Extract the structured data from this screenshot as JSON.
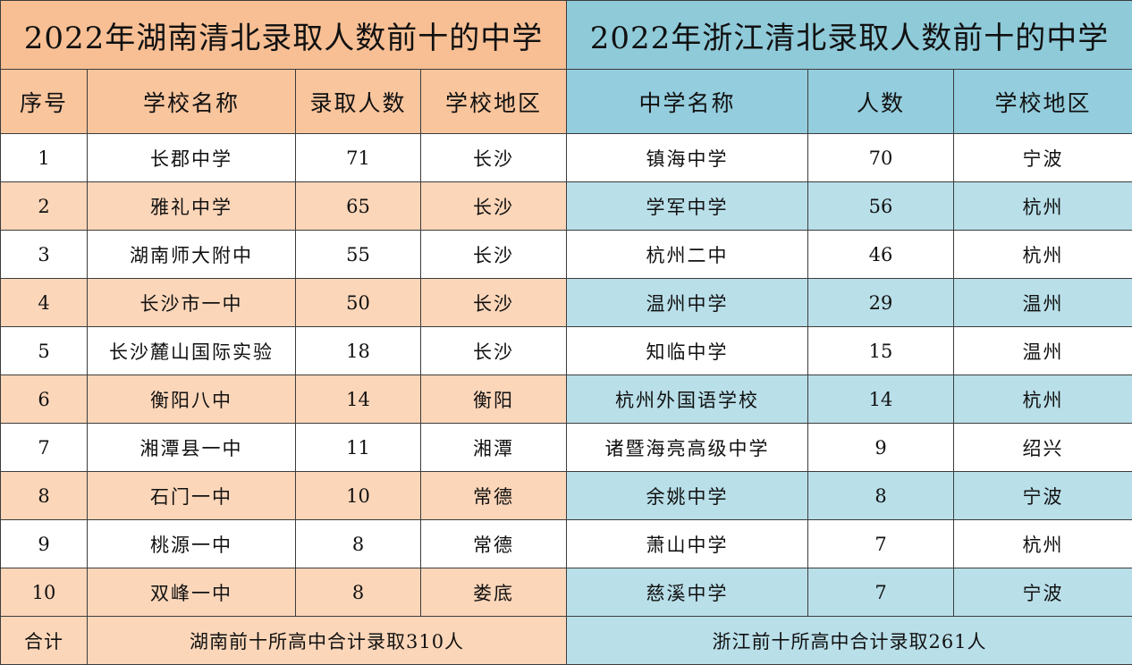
{
  "hunan": {
    "title": "2022年湖南清北录取人数前十的中学",
    "headers": [
      "序号",
      "学校名称",
      "录取人数",
      "学校地区"
    ],
    "rows": [
      [
        "1",
        "长郡中学",
        "71",
        "长沙"
      ],
      [
        "2",
        "雅礼中学",
        "65",
        "长沙"
      ],
      [
        "3",
        "湖南师大附中",
        "55",
        "长沙"
      ],
      [
        "4",
        "长沙市一中",
        "50",
        "长沙"
      ],
      [
        "5",
        "长沙麓山国际实验",
        "18",
        "长沙"
      ],
      [
        "6",
        "衡阳八中",
        "14",
        "衡阳"
      ],
      [
        "7",
        "湘潭县一中",
        "11",
        "湘潭"
      ],
      [
        "8",
        "石门一中",
        "10",
        "常德"
      ],
      [
        "9",
        "桃源一中",
        "8",
        "常德"
      ],
      [
        "10",
        "双峰一中",
        "8",
        "娄底"
      ]
    ],
    "total_label": "合计",
    "total_text": "湖南前十所高中合计录取310人"
  },
  "zhejiang": {
    "title": "2022年浙江清北录取人数前十的中学",
    "headers": [
      "中学名称",
      "人数",
      "学校地区"
    ],
    "rows": [
      [
        "镇海中学",
        "70",
        "宁波"
      ],
      [
        "学军中学",
        "56",
        "杭州"
      ],
      [
        "杭州二中",
        "46",
        "杭州"
      ],
      [
        "温州中学",
        "29",
        "温州"
      ],
      [
        "知临中学",
        "15",
        "温州"
      ],
      [
        "杭州外国语学校",
        "14",
        "杭州"
      ],
      [
        "诸暨海亮高级中学",
        "9",
        "绍兴"
      ],
      [
        "余姚中学",
        "8",
        "宁波"
      ],
      [
        "萧山中学",
        "7",
        "杭州"
      ],
      [
        "慈溪中学",
        "7",
        "宁波"
      ]
    ],
    "total_text": "浙江前十所高中合计录取261人"
  },
  "colors": {
    "hunan_title": "#f8bf94",
    "hunan_alt_row": "#fcd6b9",
    "zhejiang_title": "#8fcad9",
    "zhejiang_alt_row": "#b9dfe9"
  }
}
